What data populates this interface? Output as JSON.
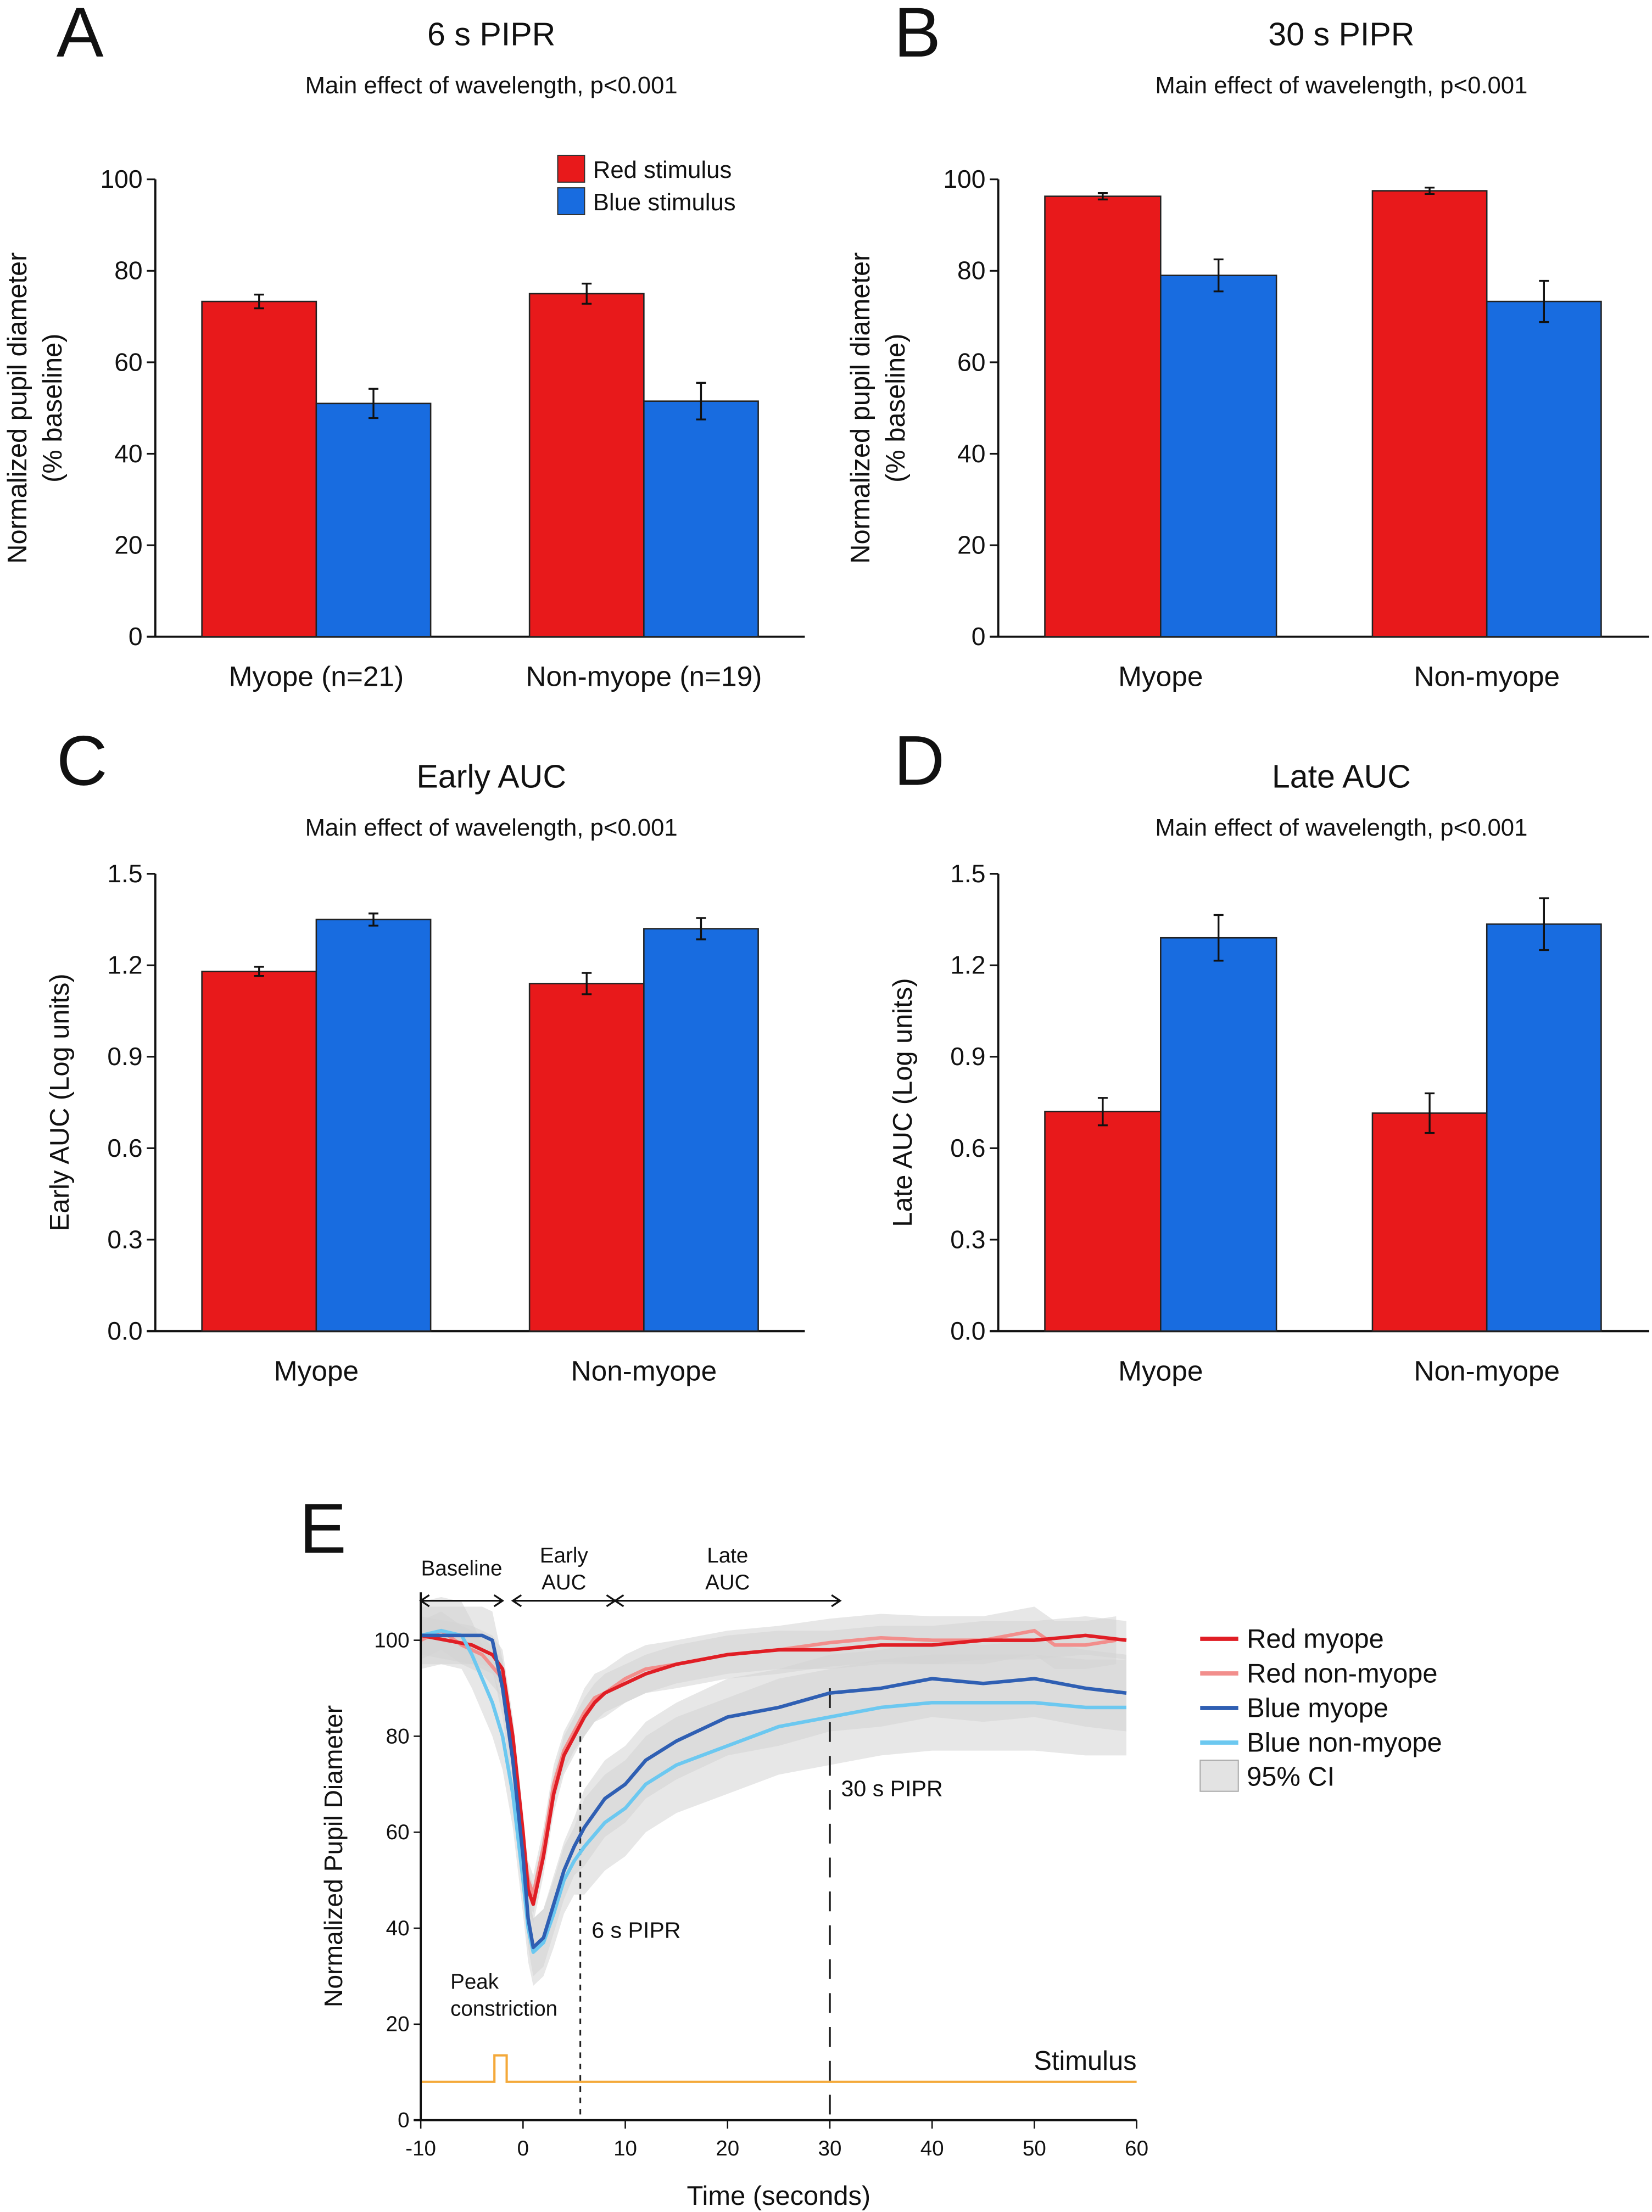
{
  "colors": {
    "red": "#e8191b",
    "blue": "#186ce0",
    "red_myope": "#e01e25",
    "red_non_myope": "#f28e8c",
    "blue_myope": "#2f5fb3",
    "blue_non_myope": "#6cc8f0",
    "ci": "#d4d4d4",
    "stimulus": "#f4a93a"
  },
  "chart_data": [
    {
      "type": "bar",
      "panel": "A",
      "title": "6 s PIPR",
      "subtitle": "Main effect of wavelength, p<0.001",
      "ylabel": "Normalized pupil diameter\n(% baseline)",
      "ylim": [
        0,
        100
      ],
      "yticks": [
        "0",
        "20",
        "40",
        "60",
        "80",
        "100"
      ],
      "categories": [
        "Myope (n=21)",
        "Non-myope (n=19)"
      ],
      "legend": "top-right",
      "series": [
        {
          "name": "Red stimulus",
          "values": [
            73.3,
            75.0
          ],
          "errors": [
            1.5,
            2.2
          ]
        },
        {
          "name": "Blue stimulus",
          "values": [
            51.0,
            51.5
          ],
          "errors": [
            3.2,
            4.0
          ]
        }
      ]
    },
    {
      "type": "bar",
      "panel": "B",
      "title": "30 s PIPR",
      "subtitle": "Main effect of wavelength, p<0.001",
      "ylabel": "Normalized pupil diameter\n(% baseline)",
      "ylim": [
        0,
        100
      ],
      "yticks": [
        "0",
        "20",
        "40",
        "60",
        "80",
        "100"
      ],
      "categories": [
        "Myope",
        "Non-myope"
      ],
      "series": [
        {
          "values": [
            96.3,
            97.5
          ],
          "errors": [
            0.7,
            0.7
          ]
        },
        {
          "values": [
            79.0,
            73.3
          ],
          "errors": [
            3.5,
            4.5
          ]
        }
      ]
    },
    {
      "type": "bar",
      "panel": "C",
      "title": "Early AUC",
      "subtitle": "Main effect of wavelength, p<0.001",
      "ylabel": "Early AUC (Log units)",
      "ylim": [
        0,
        1.5
      ],
      "yticks": [
        "0.0",
        "0.3",
        "0.6",
        "0.9",
        "1.2",
        "1.5"
      ],
      "categories": [
        "Myope",
        "Non-myope"
      ],
      "series": [
        {
          "values": [
            1.18,
            1.14
          ],
          "errors": [
            0.015,
            0.035
          ]
        },
        {
          "values": [
            1.35,
            1.32
          ],
          "errors": [
            0.02,
            0.035
          ]
        }
      ]
    },
    {
      "type": "bar",
      "panel": "D",
      "title": "Late AUC",
      "subtitle": "Main effect of wavelength, p<0.001",
      "ylabel": "Late AUC (Log units)",
      "ylim": [
        0,
        1.5
      ],
      "yticks": [
        "0.0",
        "0.3",
        "0.6",
        "0.9",
        "1.2",
        "1.5"
      ],
      "categories": [
        "Myope",
        "Non-myope"
      ],
      "series": [
        {
          "values": [
            0.72,
            0.715
          ],
          "errors": [
            0.045,
            0.065
          ]
        },
        {
          "values": [
            1.29,
            1.335
          ],
          "errors": [
            0.075,
            0.085
          ]
        }
      ]
    },
    {
      "type": "line",
      "panel": "E",
      "xlabel": "Time (seconds)",
      "ylabel": "Normalized Pupil Diameter",
      "xlim": [
        -10,
        60
      ],
      "ylim": [
        0,
        110
      ],
      "xticks": [
        "-10",
        "0",
        "10",
        "20",
        "30",
        "40",
        "50",
        "60"
      ],
      "yticks": [
        "0",
        "20",
        "40",
        "60",
        "80",
        "100"
      ],
      "legend": "right",
      "series": [
        {
          "name": "Red myope",
          "points": [
            [
              -10,
              101
            ],
            [
              -5,
              99
            ],
            [
              -3,
              97
            ],
            [
              -2,
              94
            ],
            [
              -1,
              80
            ],
            [
              0,
              60
            ],
            [
              0.5,
              48
            ],
            [
              1,
              45
            ],
            [
              2,
              55
            ],
            [
              3,
              68
            ],
            [
              4,
              76
            ],
            [
              5,
              80
            ],
            [
              6,
              84
            ],
            [
              7,
              87
            ],
            [
              8,
              89
            ],
            [
              10,
              91
            ],
            [
              12,
              93
            ],
            [
              15,
              95
            ],
            [
              20,
              97
            ],
            [
              25,
              98
            ],
            [
              30,
              98
            ],
            [
              35,
              99
            ],
            [
              40,
              99
            ],
            [
              45,
              100
            ],
            [
              50,
              100
            ],
            [
              55,
              101
            ],
            [
              59,
              100
            ]
          ]
        },
        {
          "name": "Red non-myope",
          "points": [
            [
              -10,
              100
            ],
            [
              -8,
              102
            ],
            [
              -6,
              99
            ],
            [
              -4,
              97
            ],
            [
              -2,
              92
            ],
            [
              -1,
              78
            ],
            [
              0,
              58
            ],
            [
              0.5,
              50
            ],
            [
              1,
              47
            ],
            [
              2,
              57
            ],
            [
              3,
              70
            ],
            [
              4,
              77
            ],
            [
              5,
              81
            ],
            [
              6,
              85
            ],
            [
              7,
              88
            ],
            [
              8,
              89
            ],
            [
              10,
              92
            ],
            [
              12,
              94
            ],
            [
              15,
              95
            ],
            [
              20,
              97
            ],
            [
              25,
              98
            ],
            [
              30,
              99.5
            ],
            [
              35,
              100.5
            ],
            [
              40,
              100
            ],
            [
              45,
              100
            ],
            [
              50,
              102
            ],
            [
              52,
              99
            ],
            [
              55,
              99
            ],
            [
              58,
              100
            ]
          ]
        },
        {
          "name": "Blue myope",
          "points": [
            [
              -10,
              101
            ],
            [
              -4,
              101
            ],
            [
              -3,
              100
            ],
            [
              -2,
              90
            ],
            [
              -1,
              75
            ],
            [
              0,
              55
            ],
            [
              0.5,
              42
            ],
            [
              1,
              36
            ],
            [
              2,
              38
            ],
            [
              3,
              45
            ],
            [
              4,
              52
            ],
            [
              5,
              57
            ],
            [
              6,
              61
            ],
            [
              8,
              67
            ],
            [
              10,
              70
            ],
            [
              12,
              75
            ],
            [
              15,
              79
            ],
            [
              20,
              84
            ],
            [
              25,
              86
            ],
            [
              30,
              89
            ],
            [
              35,
              90
            ],
            [
              40,
              92
            ],
            [
              45,
              91
            ],
            [
              50,
              92
            ],
            [
              55,
              90
            ],
            [
              59,
              89
            ]
          ]
        },
        {
          "name": "Blue non-myope",
          "points": [
            [
              -10,
              101
            ],
            [
              -8,
              102
            ],
            [
              -6,
              101
            ],
            [
              -5,
              97
            ],
            [
              -4,
              92
            ],
            [
              -3,
              87
            ],
            [
              -2,
              80
            ],
            [
              -1,
              68
            ],
            [
              0,
              50
            ],
            [
              0.5,
              40
            ],
            [
              1,
              35
            ],
            [
              2,
              37
            ],
            [
              3,
              43
            ],
            [
              4,
              50
            ],
            [
              5,
              54
            ],
            [
              6,
              57
            ],
            [
              8,
              62
            ],
            [
              10,
              65
            ],
            [
              12,
              70
            ],
            [
              15,
              74
            ],
            [
              20,
              78
            ],
            [
              25,
              82
            ],
            [
              30,
              84
            ],
            [
              35,
              86
            ],
            [
              40,
              87
            ],
            [
              45,
              87
            ],
            [
              50,
              87
            ],
            [
              55,
              86
            ],
            [
              59,
              86
            ]
          ]
        }
      ],
      "ci_label": "95% CI",
      "stimulus": {
        "label": "Stimulus",
        "on": -2.8,
        "off": -1.6
      },
      "markers": [
        {
          "x": 5.6,
          "label": "6 s PIPR"
        },
        {
          "x": 30,
          "label": "30 s PIPR"
        }
      ],
      "annotations": {
        "peak": [
          "Peak",
          "constriction"
        ]
      },
      "intervals": [
        {
          "label": [
            "Baseline"
          ],
          "from": -10,
          "to": -2
        },
        {
          "label": [
            "Early",
            "AUC"
          ],
          "from": -1,
          "to": 9
        },
        {
          "label": [
            "Late",
            "AUC"
          ],
          "from": 9,
          "to": 31
        }
      ]
    }
  ]
}
